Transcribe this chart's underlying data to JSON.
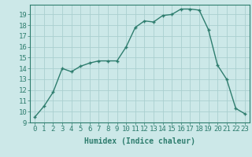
{
  "x": [
    0,
    1,
    2,
    3,
    4,
    5,
    6,
    7,
    8,
    9,
    10,
    11,
    12,
    13,
    14,
    15,
    16,
    17,
    18,
    19,
    20,
    21,
    22,
    23
  ],
  "y": [
    9.5,
    10.5,
    11.8,
    14.0,
    13.7,
    14.2,
    14.5,
    14.7,
    14.7,
    14.7,
    16.0,
    17.8,
    18.4,
    18.3,
    18.9,
    19.0,
    19.5,
    19.5,
    19.4,
    17.6,
    14.3,
    13.0,
    10.3,
    9.8
  ],
  "line_color": "#2e7d6e",
  "marker": "+",
  "bg_color": "#cce8e8",
  "grid_color": "#aacfcf",
  "xlabel": "Humidex (Indice chaleur)",
  "xlabel_fontsize": 7,
  "ylabel_ticks": [
    9,
    10,
    11,
    12,
    13,
    14,
    15,
    16,
    17,
    18,
    19
  ],
  "xlim": [
    -0.5,
    23.5
  ],
  "ylim": [
    9,
    19.9
  ],
  "tick_fontsize": 6.5,
  "linewidth": 1.0,
  "markersize": 3.5
}
